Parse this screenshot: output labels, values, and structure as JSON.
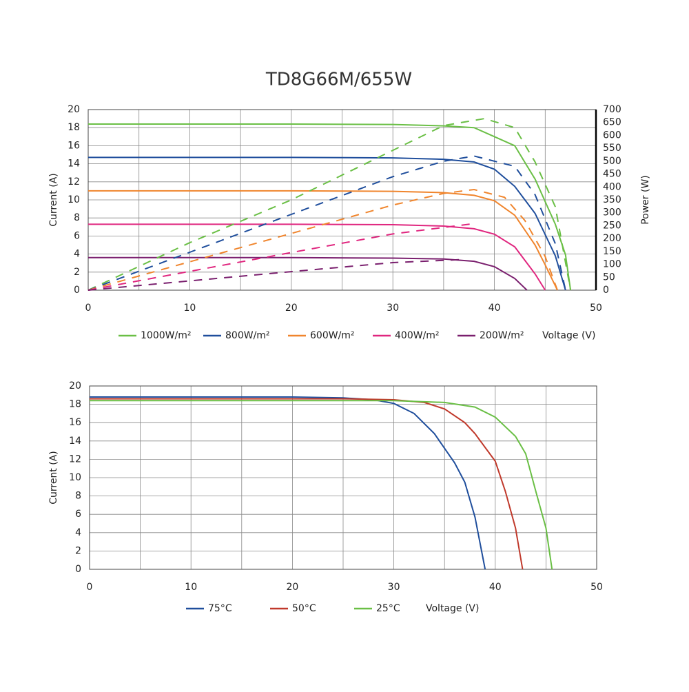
{
  "chart_data": [
    {
      "type": "line",
      "title": "TD8G66M/655W",
      "xlabel": "Voltage (V)",
      "ylabel": "Current (A)",
      "y2label": "Power (W)",
      "xlim": [
        0,
        50
      ],
      "xticks": [
        0,
        10,
        20,
        30,
        40,
        50
      ],
      "xminor": [
        5,
        15,
        25,
        35,
        45
      ],
      "ylim": [
        0,
        20
      ],
      "yticks": [
        0,
        2,
        4,
        6,
        8,
        10,
        12,
        14,
        16,
        18,
        20
      ],
      "y2lim": [
        0,
        700
      ],
      "y2ticks": [
        0,
        50,
        100,
        150,
        200,
        250,
        300,
        350,
        400,
        450,
        500,
        550,
        600,
        650,
        700
      ],
      "grid": true,
      "series": [
        {
          "name": "1000W/m²",
          "color": "#6abf45",
          "x": [
            0,
            10,
            20,
            30,
            35,
            38,
            40,
            42,
            44,
            46,
            47,
            47.5
          ],
          "values": [
            18.4,
            18.4,
            18.4,
            18.35,
            18.2,
            18.0,
            17.0,
            16.0,
            12.3,
            7.3,
            3.9,
            0
          ]
        },
        {
          "name": "800W/m²",
          "color": "#1f4e9c",
          "x": [
            0,
            10,
            20,
            30,
            35,
            38,
            40,
            42,
            44,
            46,
            47
          ],
          "values": [
            14.7,
            14.7,
            14.7,
            14.65,
            14.5,
            14.2,
            13.4,
            11.5,
            8.5,
            3.8,
            0
          ]
        },
        {
          "name": "600W/m²",
          "color": "#f0852d",
          "x": [
            0,
            20,
            30,
            35,
            38,
            40,
            42,
            44,
            45,
            46.2
          ],
          "values": [
            11.0,
            11.0,
            10.95,
            10.8,
            10.5,
            9.9,
            8.3,
            5.0,
            2.8,
            0
          ]
        },
        {
          "name": "400W/m²",
          "color": "#e0267f",
          "x": [
            0,
            20,
            30,
            35,
            38,
            40,
            42,
            44,
            45
          ],
          "values": [
            7.3,
            7.3,
            7.25,
            7.1,
            6.8,
            6.2,
            4.8,
            1.8,
            0
          ]
        },
        {
          "name": "200W/m²",
          "color": "#7a1f6e",
          "x": [
            0,
            20,
            30,
            35,
            38,
            40,
            42,
            43.2
          ],
          "values": [
            3.6,
            3.6,
            3.55,
            3.45,
            3.2,
            2.6,
            1.3,
            0
          ]
        },
        {
          "axis": "y2",
          "color": "#6abf45",
          "x": [
            0,
            10,
            20,
            30,
            35,
            39,
            42,
            44,
            46,
            47.5
          ],
          "values": [
            0,
            184,
            350,
            542,
            638,
            665,
            630,
            497,
            323,
            0
          ]
        },
        {
          "axis": "y2",
          "color": "#1f4e9c",
          "x": [
            0,
            10,
            20,
            30,
            35,
            38,
            42,
            44,
            46,
            47
          ],
          "values": [
            0,
            147,
            294,
            440,
            500,
            520,
            480,
            370,
            180,
            0
          ]
        },
        {
          "axis": "y2",
          "color": "#f0852d",
          "x": [
            0,
            10,
            20,
            30,
            35,
            38,
            41,
            43,
            45,
            46.2
          ],
          "values": [
            0,
            110,
            220,
            330,
            375,
            390,
            360,
            270,
            130,
            0
          ]
        },
        {
          "axis": "y2",
          "color": "#e0267f",
          "x": [
            0,
            10,
            20,
            30,
            38
          ],
          "values": [
            0,
            73,
            146,
            218,
            258
          ]
        },
        {
          "axis": "y2",
          "color": "#7a1f6e",
          "x": [
            0,
            10,
            20,
            30,
            36.5
          ],
          "values": [
            0,
            36,
            72,
            107,
            118
          ]
        }
      ]
    },
    {
      "type": "line",
      "xlabel": "Voltage (V)",
      "ylabel": "Current (A)",
      "xlim": [
        0,
        50
      ],
      "xticks": [
        0,
        10,
        20,
        30,
        40,
        50
      ],
      "xminor": [
        5,
        15,
        25,
        35,
        45
      ],
      "ylim": [
        0,
        20
      ],
      "yticks": [
        0,
        2,
        4,
        6,
        8,
        10,
        12,
        14,
        16,
        18,
        20
      ],
      "grid": true,
      "series": [
        {
          "name": "75°C",
          "color": "#1f4e9c",
          "x": [
            0,
            20,
            25,
            28,
            30,
            32,
            34,
            35,
            36,
            37,
            38,
            39
          ],
          "values": [
            18.8,
            18.8,
            18.7,
            18.5,
            18.1,
            17.0,
            14.8,
            13.2,
            11.6,
            9.5,
            5.7,
            0
          ]
        },
        {
          "name": "50°C",
          "color": "#c0392b",
          "x": [
            0,
            25,
            30,
            33,
            35,
            37,
            38,
            40,
            41,
            42,
            42.7
          ],
          "values": [
            18.6,
            18.6,
            18.5,
            18.2,
            17.5,
            16.0,
            14.8,
            11.8,
            8.5,
            4.5,
            0
          ]
        },
        {
          "name": "25°C",
          "color": "#6abf45",
          "x": [
            0,
            30,
            35,
            38,
            40,
            42,
            43,
            44,
            45,
            45.6
          ],
          "values": [
            18.4,
            18.4,
            18.2,
            17.7,
            16.6,
            14.5,
            12.6,
            8.5,
            4.5,
            0
          ]
        }
      ]
    }
  ]
}
